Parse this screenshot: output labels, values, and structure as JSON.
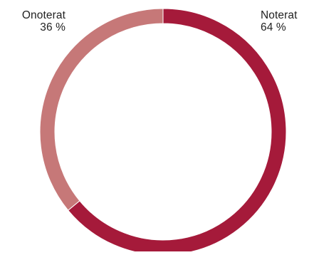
{
  "chart_data": {
    "type": "pie",
    "variant": "donut",
    "slices": [
      {
        "label": "Noterat",
        "value": 64,
        "value_label": "64 %",
        "color": "#a51a3a"
      },
      {
        "label": "Onoterat",
        "value": 36,
        "value_label": "36 %",
        "color": "#c67878"
      }
    ],
    "start_angle_deg": 0,
    "direction": "clockwise"
  }
}
